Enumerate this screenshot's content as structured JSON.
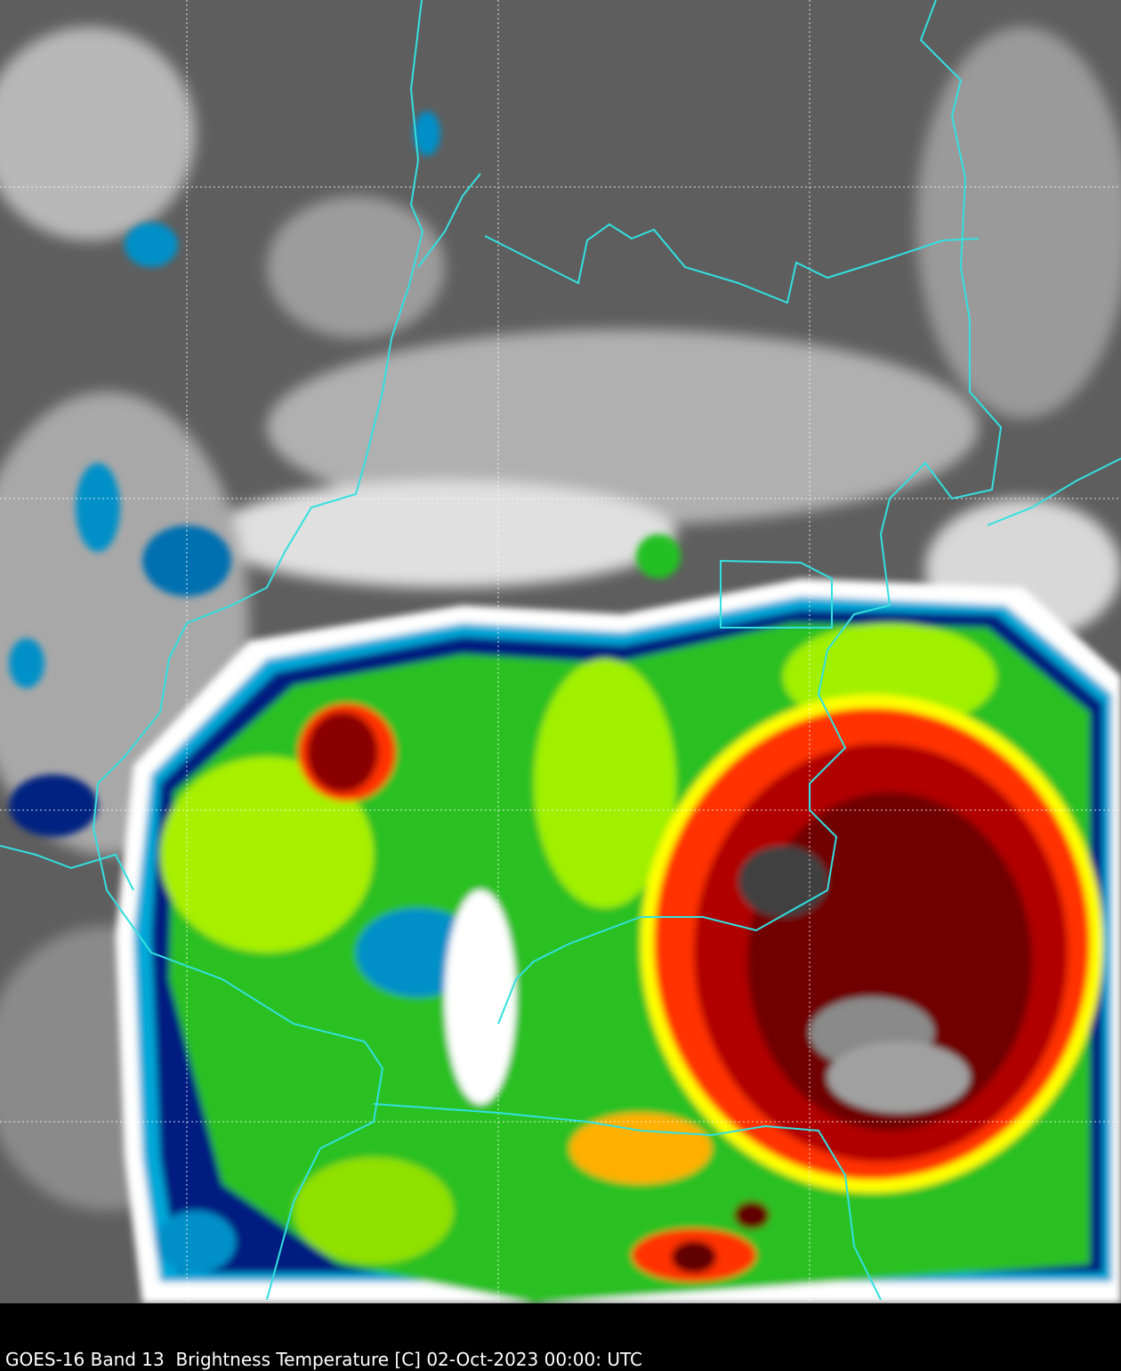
{
  "caption": "GOES-16 Band 13  Brightness Temperature [C] 02-Oct-2023 00:00: UTC",
  "colors": {
    "background": "#000000",
    "border_lines": "#33e0e0",
    "grid_lines": "#ffffff",
    "cloud_free": "#5a5a5a",
    "cold_cloud_scale": [
      "#ffffff",
      "#00b0e0",
      "#002080",
      "#00c000",
      "#c0ff00",
      "#ffff00",
      "#ff2000",
      "#800000",
      "#404040",
      "#b0b0b0"
    ]
  }
}
